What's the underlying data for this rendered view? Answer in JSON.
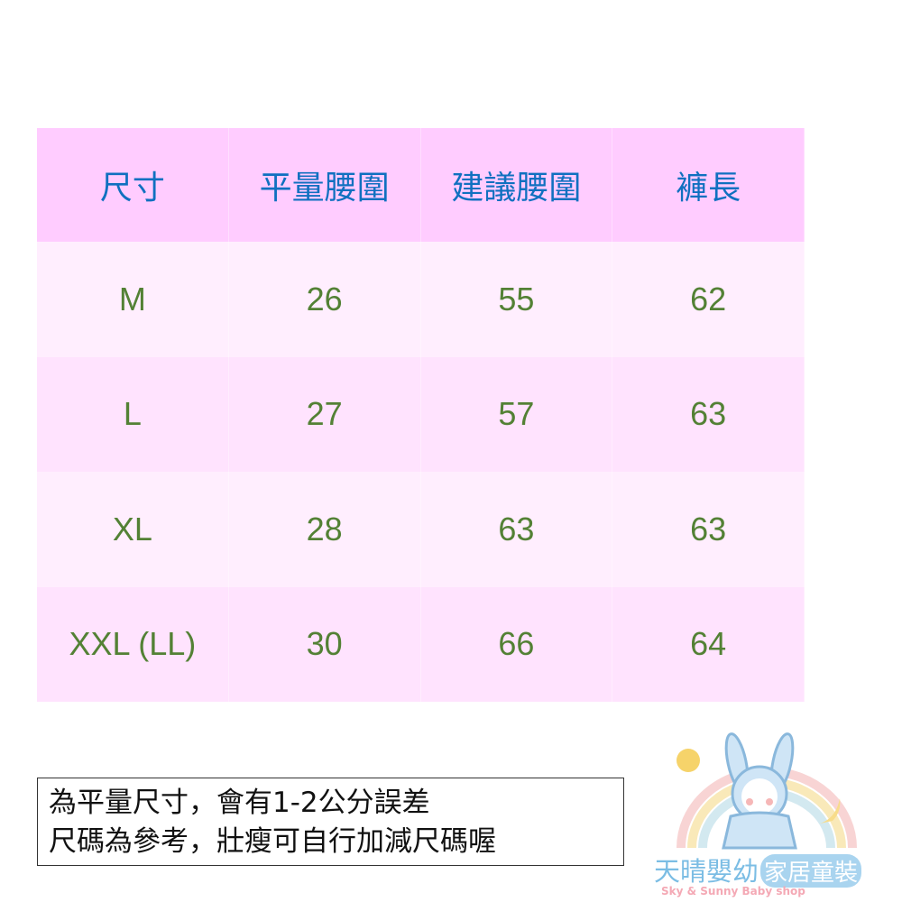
{
  "table": {
    "headers": [
      "尺寸",
      "平量腰圍",
      "建議腰圍",
      "褲長"
    ],
    "rows": [
      [
        "M",
        "26",
        "55",
        "62"
      ],
      [
        "L",
        "27",
        "57",
        "63"
      ],
      [
        "XL",
        "28",
        "63",
        "63"
      ],
      [
        "XXL (LL)",
        "30",
        "66",
        "64"
      ]
    ]
  },
  "note": {
    "line1": "為平量尺寸，會有1-2公分誤差",
    "line2": "尺碼為參考，壯瘦可自行加減尺碼喔"
  },
  "logo": {
    "title": "天晴嬰幼",
    "badge": "家居童裝",
    "subtitle": "Sky & Sunny Baby shop"
  },
  "colors": {
    "header_bg": "#ffccff",
    "header_text": "#1070c0",
    "body_text": "#538135"
  }
}
